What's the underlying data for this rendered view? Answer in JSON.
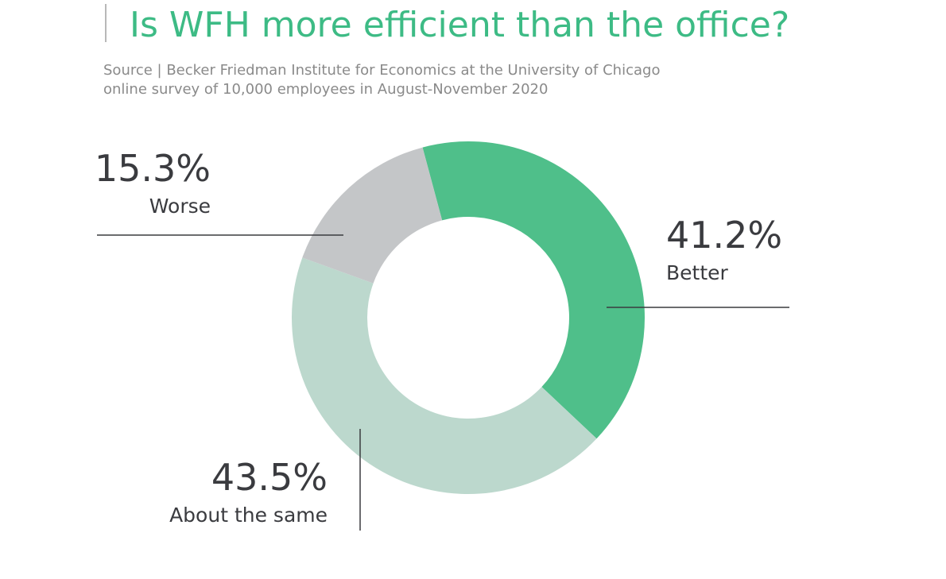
{
  "chart_data": {
    "type": "donut",
    "title": "Is WFH more efficient than the office?",
    "subtitle": [
      "Source | Becker Friedman Institute for Economics at the University of Chicago",
      "online survey of 10,000 employees in August-November 2020"
    ],
    "categories": [
      "Better",
      "About the same",
      "Worse"
    ],
    "values": [
      41.2,
      43.5,
      15.3
    ],
    "value_labels": [
      "41.2%",
      "43.5%",
      "15.3%"
    ],
    "colors": [
      "#4fbf8a",
      "#bcd8cd",
      "#c4c6c8"
    ]
  }
}
